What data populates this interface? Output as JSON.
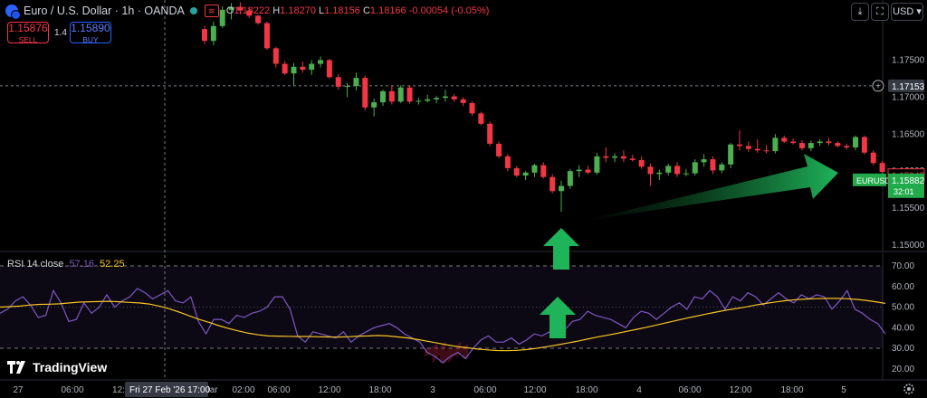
{
  "header": {
    "symbol_title": "Euro / U.S. Dollar · 1h · OANDA",
    "ohlc": {
      "o_label": "O",
      "o": "1.18222",
      "h_label": "H",
      "h": "1.18270",
      "l_label": "L",
      "l": "1.18156",
      "c_label": "C",
      "c": "1.18166",
      "change": "-0.00054 (-0.05%)"
    },
    "currency": "USD",
    "menu_icon": "chevron-down-icon",
    "snapshot_icon": "camera-icon"
  },
  "trading": {
    "sell_price": "1.15876",
    "sell_label": "SELL",
    "spread": "1.4",
    "buy_price": "1.15890",
    "buy_label": "BUY"
  },
  "price_panel": {
    "crosshair_price": "1.17153",
    "last_price": "1.15945",
    "current_symbol": "EURUSD",
    "current_price": "1.15882",
    "countdown": "32:01"
  },
  "rsi_panel": {
    "name": "RSI 14 close",
    "value1": "57.16",
    "value2": "52.25"
  },
  "time_axis": {
    "crosshair_label": "Fri 27 Feb '26   17:00"
  },
  "branding": {
    "logo_text": "TradingView"
  },
  "colors": {
    "up": "#4caf50",
    "down": "#f23645",
    "rsi_line": "#7e57c2",
    "rsi_ma": "#f7c325",
    "arrow": "#1fb45a",
    "bg": "#000000"
  },
  "chart_data": [
    {
      "type": "candlestick",
      "title": "Euro / U.S. Dollar · 1h · OANDA",
      "y_ticks": [
        "1.17500",
        "1.17000",
        "1.16500",
        "1.16000",
        "1.15500",
        "1.15000"
      ],
      "x_ticks": [
        "27",
        "06:00",
        "12:",
        "Mar",
        "02:00",
        "06:00",
        "12:00",
        "18:00",
        "3",
        "06:00",
        "12:00",
        "18:00",
        "4",
        "06:00",
        "12:00",
        "18:00",
        "5"
      ],
      "ohlc": [
        [
          1.1792,
          1.1796,
          1.1772,
          1.1776
        ],
        [
          1.1776,
          1.1802,
          1.177,
          1.1796
        ],
        [
          1.1796,
          1.1823,
          1.1793,
          1.1818
        ],
        [
          1.1818,
          1.1827,
          1.1805,
          1.1822
        ],
        [
          1.1822,
          1.1828,
          1.1812,
          1.1817
        ],
        [
          1.1817,
          1.1822,
          1.1807,
          1.181
        ],
        [
          1.181,
          1.1811,
          1.1798,
          1.18
        ],
        [
          1.18,
          1.1802,
          1.1764,
          1.1766
        ],
        [
          1.1766,
          1.1768,
          1.174,
          1.1745
        ],
        [
          1.1745,
          1.1749,
          1.173,
          1.1732
        ],
        [
          1.1732,
          1.1746,
          1.1715,
          1.1741
        ],
        [
          1.1741,
          1.1748,
          1.1733,
          1.1737
        ],
        [
          1.1737,
          1.175,
          1.173,
          1.1745
        ],
        [
          1.1745,
          1.1755,
          1.174,
          1.175
        ],
        [
          1.175,
          1.1752,
          1.1725,
          1.1727
        ],
        [
          1.1727,
          1.1731,
          1.171,
          1.1714
        ],
        [
          1.1714,
          1.1719,
          1.17,
          1.1715
        ],
        [
          1.1715,
          1.1733,
          1.1709,
          1.1726
        ],
        [
          1.1726,
          1.1729,
          1.1682,
          1.1686
        ],
        [
          1.1686,
          1.1698,
          1.1674,
          1.1693
        ],
        [
          1.1693,
          1.171,
          1.1688,
          1.1708
        ],
        [
          1.1708,
          1.1716,
          1.169,
          1.1694
        ],
        [
          1.1694,
          1.1716,
          1.1692,
          1.1713
        ],
        [
          1.1713,
          1.1716,
          1.1691,
          1.1694
        ],
        [
          1.1694,
          1.1699,
          1.169,
          1.1695
        ],
        [
          1.1695,
          1.1703,
          1.1693,
          1.1697
        ],
        [
          1.1697,
          1.1702,
          1.1692,
          1.1699
        ],
        [
          1.1699,
          1.171,
          1.1694,
          1.1701
        ],
        [
          1.1701,
          1.1704,
          1.1694,
          1.1697
        ],
        [
          1.1697,
          1.17,
          1.1688,
          1.1692
        ],
        [
          1.1692,
          1.1694,
          1.1675,
          1.1678
        ],
        [
          1.1678,
          1.168,
          1.1662,
          1.1664
        ],
        [
          1.1664,
          1.1667,
          1.1634,
          1.1637
        ],
        [
          1.1637,
          1.164,
          1.1618,
          1.162
        ],
        [
          1.162,
          1.1623,
          1.16,
          1.1604
        ],
        [
          1.1604,
          1.1607,
          1.1592,
          1.1594
        ],
        [
          1.1594,
          1.16,
          1.1588,
          1.1598
        ],
        [
          1.1598,
          1.161,
          1.1592,
          1.1608
        ],
        [
          1.1608,
          1.1612,
          1.159,
          1.1592
        ],
        [
          1.1592,
          1.1596,
          1.157,
          1.1573
        ],
        [
          1.1573,
          1.1587,
          1.1545,
          1.158
        ],
        [
          1.158,
          1.1603,
          1.1576,
          1.16
        ],
        [
          1.16,
          1.1608,
          1.1592,
          1.1602
        ],
        [
          1.1602,
          1.1607,
          1.1596,
          1.1598
        ],
        [
          1.1598,
          1.1625,
          1.1595,
          1.162
        ],
        [
          1.162,
          1.1632,
          1.1612,
          1.1618
        ],
        [
          1.1618,
          1.1624,
          1.1612,
          1.162
        ],
        [
          1.162,
          1.1628,
          1.1612,
          1.1617
        ],
        [
          1.1617,
          1.1622,
          1.1613,
          1.1615
        ],
        [
          1.1615,
          1.162,
          1.1603,
          1.1606
        ],
        [
          1.1606,
          1.161,
          1.158,
          1.1596
        ],
        [
          1.1596,
          1.1602,
          1.1588,
          1.1598
        ],
        [
          1.1598,
          1.161,
          1.1594,
          1.1607
        ],
        [
          1.1607,
          1.1612,
          1.1592,
          1.1596
        ],
        [
          1.1596,
          1.1603,
          1.1593,
          1.1597
        ],
        [
          1.1597,
          1.1616,
          1.1594,
          1.1612
        ],
        [
          1.1612,
          1.1623,
          1.1606,
          1.1616
        ],
        [
          1.1616,
          1.162,
          1.1596,
          1.1601
        ],
        [
          1.1601,
          1.1612,
          1.1597,
          1.1609
        ],
        [
          1.1609,
          1.1638,
          1.1604,
          1.1636
        ],
        [
          1.1636,
          1.1655,
          1.1628,
          1.1634
        ],
        [
          1.1634,
          1.164,
          1.1626,
          1.163
        ],
        [
          1.163,
          1.1643,
          1.1625,
          1.1628
        ],
        [
          1.1628,
          1.1635,
          1.1624,
          1.1627
        ],
        [
          1.1627,
          1.165,
          1.1624,
          1.1645
        ],
        [
          1.1645,
          1.1648,
          1.1638,
          1.164
        ],
        [
          1.164,
          1.1644,
          1.1636,
          1.1638
        ],
        [
          1.1638,
          1.1642,
          1.1628,
          1.1631
        ],
        [
          1.1631,
          1.1641,
          1.1627,
          1.1638
        ],
        [
          1.1638,
          1.1643,
          1.1634,
          1.164
        ],
        [
          1.164,
          1.1645,
          1.1635,
          1.1638
        ],
        [
          1.1638,
          1.164,
          1.1632,
          1.1634
        ],
        [
          1.1634,
          1.1637,
          1.1629,
          1.1632
        ],
        [
          1.1632,
          1.1648,
          1.1628,
          1.1646
        ],
        [
          1.1646,
          1.1648,
          1.1622,
          1.1625
        ],
        [
          1.1625,
          1.1628,
          1.1608,
          1.1611
        ],
        [
          1.1611,
          1.1614,
          1.1596,
          1.1599
        ],
        [
          1.1599,
          1.1601,
          1.159,
          1.1594
        ]
      ]
    },
    {
      "type": "line",
      "title": "RSI 14 close",
      "y_ticks": [
        "70.00",
        "60.00",
        "50.00",
        "40.00",
        "30.00",
        "20.00"
      ],
      "bands": [
        30,
        70
      ],
      "series": [
        {
          "values": [
            47,
            49,
            53,
            55,
            51,
            45,
            46,
            58,
            52,
            43,
            44,
            52,
            47,
            50,
            56,
            50,
            53,
            55,
            59,
            57,
            54,
            56,
            58,
            53,
            52,
            55,
            43,
            37,
            44,
            44,
            42,
            46,
            45,
            47,
            48,
            50,
            55,
            55,
            49,
            36,
            33,
            38,
            37,
            36,
            35,
            38,
            33,
            36,
            38,
            40,
            41,
            42,
            40,
            37,
            35,
            33,
            28,
            26,
            23,
            26,
            28,
            25,
            30,
            34,
            36,
            33,
            33,
            35,
            32,
            34,
            37,
            36,
            38,
            36,
            39,
            43,
            44,
            48,
            46,
            45,
            44,
            42,
            40,
            45,
            48,
            47,
            44,
            47,
            50,
            52,
            49,
            55,
            54,
            58,
            55,
            49,
            55,
            53,
            57,
            55,
            51,
            54,
            57,
            54,
            52,
            56,
            54,
            56,
            55,
            49,
            53,
            58,
            49,
            47,
            44,
            42,
            37
          ]
        },
        {
          "values": [
            50,
            50.2,
            50.5,
            51,
            51.3,
            51.4,
            51.6,
            52,
            52.4,
            52.6,
            52.7,
            52.8,
            52.6,
            52.3,
            52,
            51.5,
            50.5,
            49.2,
            47.6,
            45.8,
            44,
            42.6,
            41,
            39.6,
            38.4,
            37.3,
            36.5,
            36,
            35.9,
            35.8,
            35.7,
            35.7,
            35.6,
            35.5,
            35.4,
            35.6,
            35.9,
            36,
            36.2,
            36,
            35.5,
            35,
            34.2,
            33.4,
            32.5,
            31.6,
            30.8,
            30.2,
            29.6,
            29.2,
            28.9,
            28.8,
            29,
            29.4,
            30,
            30.8,
            31.6,
            32.5,
            33.4,
            34.4,
            35.4,
            36.3,
            37.2,
            38.2,
            39.2,
            40.2,
            41.3,
            42.4,
            43.5,
            44.6,
            45.6,
            46.6,
            47.6,
            48.5,
            49.3,
            50.1,
            51,
            51.8,
            52.5,
            53.1,
            53.6,
            53.9,
            54.1,
            54.2,
            54.2,
            54.1,
            53.8,
            53.3,
            52.6,
            51.8
          ]
        }
      ]
    }
  ]
}
